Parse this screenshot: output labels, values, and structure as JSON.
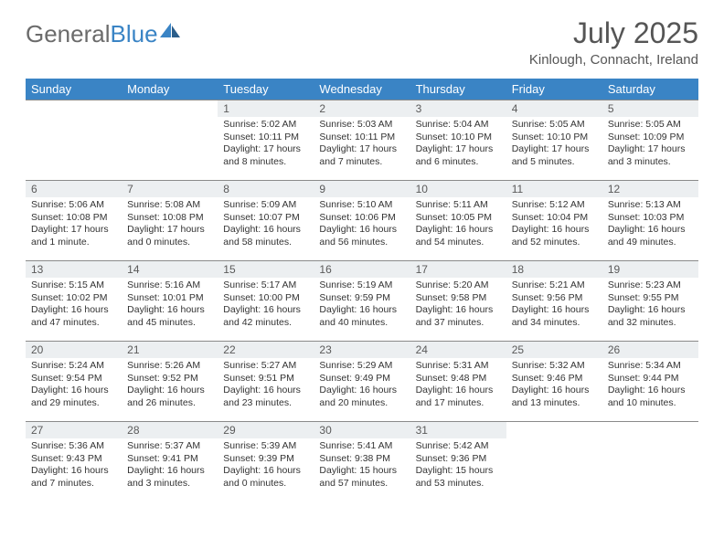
{
  "brand": {
    "part1": "General",
    "part2": "Blue"
  },
  "title": "July 2025",
  "location": "Kinlough, Connacht, Ireland",
  "colors": {
    "header_bg": "#3a84c5",
    "header_fg": "#ffffff",
    "daynum_bg": "#eceff1",
    "border": "#8a8a8a",
    "text": "#333333",
    "title": "#555555"
  },
  "weekdays": [
    "Sunday",
    "Monday",
    "Tuesday",
    "Wednesday",
    "Thursday",
    "Friday",
    "Saturday"
  ],
  "weeks": [
    [
      null,
      null,
      {
        "n": "1",
        "sr": "5:02 AM",
        "ss": "10:11 PM",
        "dl": "17 hours and 8 minutes."
      },
      {
        "n": "2",
        "sr": "5:03 AM",
        "ss": "10:11 PM",
        "dl": "17 hours and 7 minutes."
      },
      {
        "n": "3",
        "sr": "5:04 AM",
        "ss": "10:10 PM",
        "dl": "17 hours and 6 minutes."
      },
      {
        "n": "4",
        "sr": "5:05 AM",
        "ss": "10:10 PM",
        "dl": "17 hours and 5 minutes."
      },
      {
        "n": "5",
        "sr": "5:05 AM",
        "ss": "10:09 PM",
        "dl": "17 hours and 3 minutes."
      }
    ],
    [
      {
        "n": "6",
        "sr": "5:06 AM",
        "ss": "10:08 PM",
        "dl": "17 hours and 1 minute."
      },
      {
        "n": "7",
        "sr": "5:08 AM",
        "ss": "10:08 PM",
        "dl": "17 hours and 0 minutes."
      },
      {
        "n": "8",
        "sr": "5:09 AM",
        "ss": "10:07 PM",
        "dl": "16 hours and 58 minutes."
      },
      {
        "n": "9",
        "sr": "5:10 AM",
        "ss": "10:06 PM",
        "dl": "16 hours and 56 minutes."
      },
      {
        "n": "10",
        "sr": "5:11 AM",
        "ss": "10:05 PM",
        "dl": "16 hours and 54 minutes."
      },
      {
        "n": "11",
        "sr": "5:12 AM",
        "ss": "10:04 PM",
        "dl": "16 hours and 52 minutes."
      },
      {
        "n": "12",
        "sr": "5:13 AM",
        "ss": "10:03 PM",
        "dl": "16 hours and 49 minutes."
      }
    ],
    [
      {
        "n": "13",
        "sr": "5:15 AM",
        "ss": "10:02 PM",
        "dl": "16 hours and 47 minutes."
      },
      {
        "n": "14",
        "sr": "5:16 AM",
        "ss": "10:01 PM",
        "dl": "16 hours and 45 minutes."
      },
      {
        "n": "15",
        "sr": "5:17 AM",
        "ss": "10:00 PM",
        "dl": "16 hours and 42 minutes."
      },
      {
        "n": "16",
        "sr": "5:19 AM",
        "ss": "9:59 PM",
        "dl": "16 hours and 40 minutes."
      },
      {
        "n": "17",
        "sr": "5:20 AM",
        "ss": "9:58 PM",
        "dl": "16 hours and 37 minutes."
      },
      {
        "n": "18",
        "sr": "5:21 AM",
        "ss": "9:56 PM",
        "dl": "16 hours and 34 minutes."
      },
      {
        "n": "19",
        "sr": "5:23 AM",
        "ss": "9:55 PM",
        "dl": "16 hours and 32 minutes."
      }
    ],
    [
      {
        "n": "20",
        "sr": "5:24 AM",
        "ss": "9:54 PM",
        "dl": "16 hours and 29 minutes."
      },
      {
        "n": "21",
        "sr": "5:26 AM",
        "ss": "9:52 PM",
        "dl": "16 hours and 26 minutes."
      },
      {
        "n": "22",
        "sr": "5:27 AM",
        "ss": "9:51 PM",
        "dl": "16 hours and 23 minutes."
      },
      {
        "n": "23",
        "sr": "5:29 AM",
        "ss": "9:49 PM",
        "dl": "16 hours and 20 minutes."
      },
      {
        "n": "24",
        "sr": "5:31 AM",
        "ss": "9:48 PM",
        "dl": "16 hours and 17 minutes."
      },
      {
        "n": "25",
        "sr": "5:32 AM",
        "ss": "9:46 PM",
        "dl": "16 hours and 13 minutes."
      },
      {
        "n": "26",
        "sr": "5:34 AM",
        "ss": "9:44 PM",
        "dl": "16 hours and 10 minutes."
      }
    ],
    [
      {
        "n": "27",
        "sr": "5:36 AM",
        "ss": "9:43 PM",
        "dl": "16 hours and 7 minutes."
      },
      {
        "n": "28",
        "sr": "5:37 AM",
        "ss": "9:41 PM",
        "dl": "16 hours and 3 minutes."
      },
      {
        "n": "29",
        "sr": "5:39 AM",
        "ss": "9:39 PM",
        "dl": "16 hours and 0 minutes."
      },
      {
        "n": "30",
        "sr": "5:41 AM",
        "ss": "9:38 PM",
        "dl": "15 hours and 57 minutes."
      },
      {
        "n": "31",
        "sr": "5:42 AM",
        "ss": "9:36 PM",
        "dl": "15 hours and 53 minutes."
      },
      null,
      null
    ]
  ],
  "labels": {
    "sunrise": "Sunrise:",
    "sunset": "Sunset:",
    "daylight": "Daylight:"
  }
}
